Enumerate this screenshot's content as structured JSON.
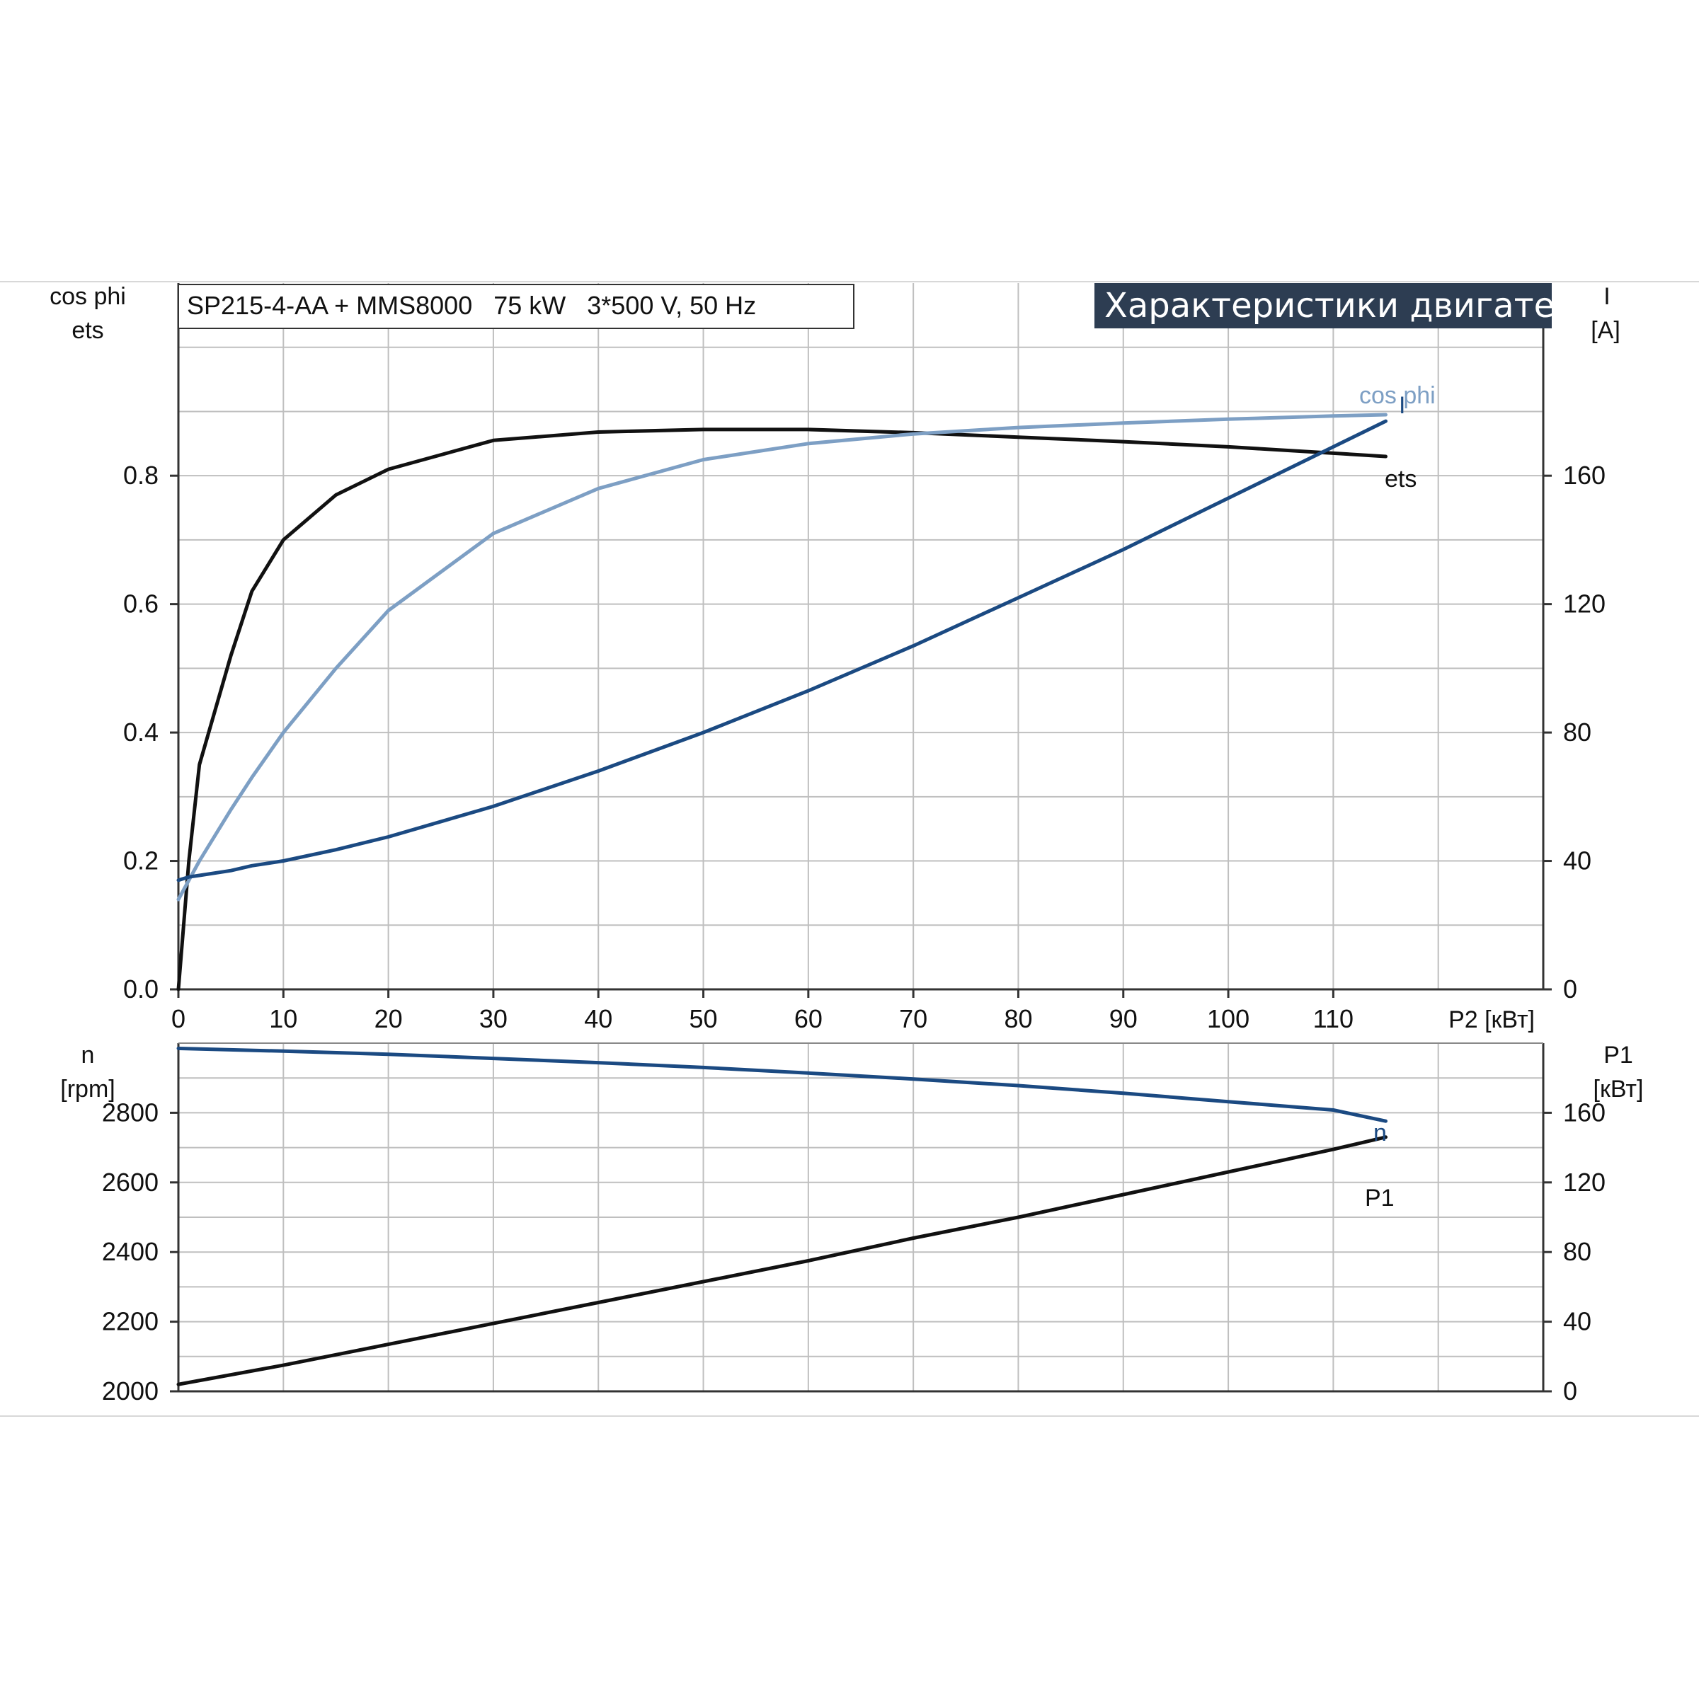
{
  "caption": "SP215-4-AA + MMS8000   75 kW   3*500 V, 50 Hz",
  "badge": "Характеристики двигателя",
  "colors": {
    "ets": "#111111",
    "cos_phi": "#7d9fc4",
    "current": "#1b4a82",
    "n": "#1b4a82",
    "p1": "#111111",
    "grid": "#bfbfbf",
    "axis": "#333333",
    "badge_bg": "#2d3d52"
  },
  "chart_data": [
    {
      "type": "line",
      "name": "upper",
      "x": [
        0,
        1,
        2,
        5,
        7,
        10,
        15,
        20,
        30,
        40,
        50,
        60,
        70,
        80,
        90,
        100,
        110,
        115
      ],
      "xlabel": "P2 [кВт]",
      "xlim": [
        0,
        130
      ],
      "xticks": [
        "0",
        "10",
        "20",
        "30",
        "40",
        "50",
        "60",
        "70",
        "80",
        "90",
        "100",
        "110"
      ],
      "left_axis": {
        "label_line1": "cos phi",
        "label_line2": "ets",
        "ylim": [
          0,
          1.1
        ],
        "ticks": [
          "0.0",
          "0.2",
          "0.4",
          "0.6",
          "0.8"
        ]
      },
      "right_axis": {
        "label_line1": "I",
        "label_line2": "[A]",
        "ylim": [
          0,
          220
        ],
        "ticks": [
          "0",
          "40",
          "80",
          "120",
          "160"
        ]
      },
      "series": [
        {
          "name": "ets",
          "axis": "left",
          "values": [
            0.0,
            0.2,
            0.35,
            0.52,
            0.62,
            0.7,
            0.77,
            0.81,
            0.855,
            0.868,
            0.872,
            0.872,
            0.867,
            0.86,
            0.853,
            0.845,
            0.835,
            0.83
          ]
        },
        {
          "name": "cos phi",
          "axis": "left",
          "values": [
            0.14,
            0.17,
            0.2,
            0.28,
            0.33,
            0.4,
            0.5,
            0.59,
            0.71,
            0.78,
            0.825,
            0.85,
            0.865,
            0.875,
            0.882,
            0.888,
            0.893,
            0.895
          ]
        },
        {
          "name": "I",
          "axis": "right",
          "values": [
            34,
            35,
            35.5,
            37,
            38.5,
            40,
            43.5,
            47.5,
            57,
            68,
            80,
            93,
            107,
            122,
            137,
            153,
            169,
            177
          ]
        }
      ]
    },
    {
      "type": "line",
      "name": "lower",
      "x": [
        0,
        10,
        20,
        30,
        40,
        50,
        60,
        70,
        80,
        90,
        100,
        110,
        115
      ],
      "xlim": [
        0,
        130
      ],
      "left_axis": {
        "label_line1": "n",
        "label_line2": "[rpm]",
        "ylim": [
          2000,
          3000
        ],
        "ticks": [
          "2000",
          "2200",
          "2400",
          "2600",
          "2800"
        ]
      },
      "right_axis": {
        "label_line1": "P1",
        "label_line2": "[кВт]",
        "ylim": [
          0,
          200
        ],
        "ticks": [
          "0",
          "40",
          "80",
          "120",
          "160"
        ]
      },
      "series": [
        {
          "name": "n",
          "axis": "left",
          "values": [
            2985,
            2977,
            2968,
            2956,
            2944,
            2930,
            2914,
            2897,
            2878,
            2856,
            2832,
            2808,
            2776
          ]
        },
        {
          "name": "P1",
          "axis": "right",
          "values": [
            4,
            15,
            27,
            39,
            51,
            63,
            75,
            88,
            100,
            113,
            126,
            139,
            146
          ]
        }
      ]
    }
  ]
}
